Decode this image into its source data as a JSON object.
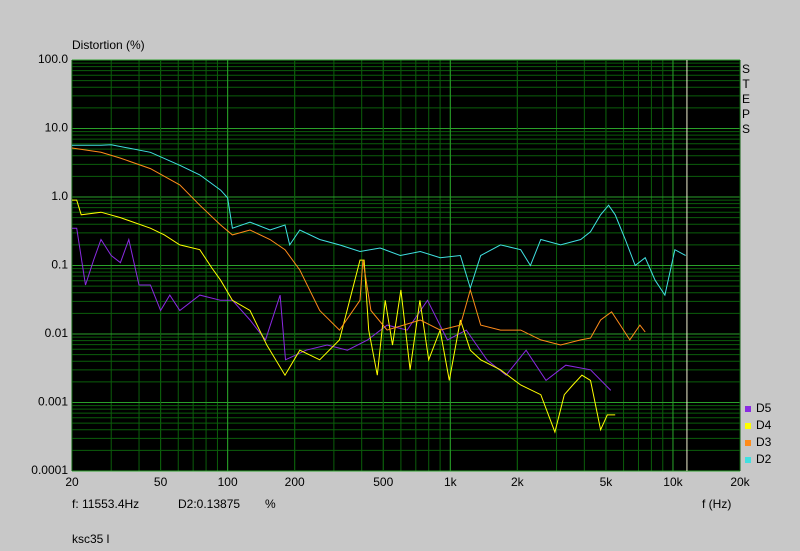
{
  "chart_data": {
    "type": "line",
    "log_x": true,
    "log_y": true,
    "grid": true,
    "y_axis_label": "Distortion (%)",
    "x_axis_label": "f (Hz)",
    "side_label": "STEPS",
    "xlim": [
      20,
      20000
    ],
    "ylim": [
      0.0001,
      100
    ],
    "xticks": [
      20,
      50,
      100,
      200,
      500,
      {
        "value": 1000,
        "label": "1k"
      },
      {
        "value": 2000,
        "label": "2k"
      },
      {
        "value": 5000,
        "label": "5k"
      },
      {
        "value": 10000,
        "label": "10k"
      },
      {
        "value": 20000,
        "label": "20k"
      }
    ],
    "yticks": [
      {
        "value": 100,
        "label": "100.0"
      },
      {
        "value": 10,
        "label": "10.0"
      },
      {
        "value": 1,
        "label": "1.0"
      },
      0.1,
      0.01,
      0.001,
      0.0001
    ],
    "cursor": {
      "x": 11553.4,
      "label": "f: 11553.4Hz",
      "readout": "D2:0.13875",
      "unit": "%"
    },
    "footer": "ksc35 l",
    "legend": "bottom-right",
    "series": [
      {
        "name": "D5",
        "color": "#8a2be2",
        "x": [
          20,
          21,
          23,
          25,
          27,
          30,
          33,
          36,
          40,
          45,
          50,
          55,
          61,
          75,
          93,
          105,
          126,
          148,
          172,
          182,
          225,
          280,
          345,
          425,
          520,
          640,
          790,
          970,
          1180,
          1460,
          1780,
          2190,
          2690,
          3300,
          4260,
          5260
        ],
        "values": [
          0.35,
          0.35,
          0.052,
          0.12,
          0.24,
          0.14,
          0.11,
          0.24,
          0.052,
          0.052,
          0.022,
          0.037,
          0.022,
          0.037,
          0.031,
          0.031,
          0.016,
          0.0082,
          0.037,
          0.0042,
          0.0058,
          0.0069,
          0.0058,
          0.0082,
          0.0135,
          0.0114,
          0.031,
          0.0082,
          0.0114,
          0.0042,
          0.0025,
          0.0058,
          0.0021,
          0.0035,
          0.003,
          0.0015
        ]
      },
      {
        "name": "D4",
        "color": "#ffff00",
        "x": [
          20,
          21,
          22,
          27,
          33,
          45,
          52,
          61,
          75,
          85,
          93,
          105,
          126,
          150,
          181,
          211,
          259,
          318,
          393,
          410,
          430,
          470,
          510,
          550,
          600,
          660,
          730,
          800,
          900,
          990,
          1110,
          1230,
          1370,
          1680,
          2070,
          2550,
          2950,
          3250,
          3550,
          3900,
          4260,
          4730,
          5070,
          5500
        ],
        "values": [
          0.9,
          0.9,
          0.55,
          0.6,
          0.5,
          0.35,
          0.28,
          0.2,
          0.17,
          0.092,
          0.061,
          0.031,
          0.022,
          0.0069,
          0.0025,
          0.0058,
          0.0042,
          0.0082,
          0.12,
          0.12,
          0.0114,
          0.0025,
          0.031,
          0.0069,
          0.044,
          0.003,
          0.031,
          0.0042,
          0.0114,
          0.0021,
          0.016,
          0.0058,
          0.0042,
          0.003,
          0.0018,
          0.0013,
          0.00037,
          0.0013,
          0.0018,
          0.0025,
          0.0021,
          0.0004,
          0.00066,
          0.00066
        ]
      },
      {
        "name": "D3",
        "color": "#ff8c1a",
        "x": [
          20,
          27,
          33,
          45,
          61,
          75,
          93,
          105,
          126,
          155,
          181,
          211,
          259,
          318,
          393,
          405,
          440,
          520,
          733,
          901,
          1110,
          1230,
          1370,
          1680,
          2070,
          2550,
          3130,
          3850,
          4260,
          4730,
          5300,
          5800,
          6400,
          7100,
          7500
        ],
        "values": [
          5.2,
          4.5,
          3.7,
          2.6,
          1.5,
          0.76,
          0.39,
          0.28,
          0.33,
          0.24,
          0.17,
          0.086,
          0.022,
          0.0114,
          0.031,
          0.12,
          0.022,
          0.0114,
          0.016,
          0.0114,
          0.0135,
          0.044,
          0.0135,
          0.0114,
          0.0114,
          0.0082,
          0.0069,
          0.0082,
          0.0087,
          0.016,
          0.021,
          0.0135,
          0.0082,
          0.0135,
          0.0107
        ]
      },
      {
        "name": "D2",
        "color": "#40e0e0",
        "x": [
          20,
          27,
          30,
          45,
          61,
          75,
          93,
          100,
          105,
          126,
          155,
          181,
          190,
          211,
          259,
          318,
          393,
          484,
          596,
          733,
          901,
          1110,
          1230,
          1370,
          1680,
          2070,
          2290,
          2550,
          3130,
          3850,
          4260,
          4730,
          5140,
          5500,
          6110,
          6770,
          7500,
          8310,
          9200,
          10200,
          11400
        ],
        "values": [
          5.7,
          5.7,
          5.8,
          4.5,
          2.9,
          2.1,
          1.26,
          0.97,
          0.35,
          0.43,
          0.33,
          0.39,
          0.2,
          0.33,
          0.24,
          0.2,
          0.16,
          0.18,
          0.14,
          0.16,
          0.13,
          0.14,
          0.047,
          0.14,
          0.2,
          0.17,
          0.1,
          0.24,
          0.2,
          0.24,
          0.31,
          0.55,
          0.76,
          0.55,
          0.24,
          0.1,
          0.13,
          0.061,
          0.037,
          0.17,
          0.14
        ]
      }
    ]
  }
}
